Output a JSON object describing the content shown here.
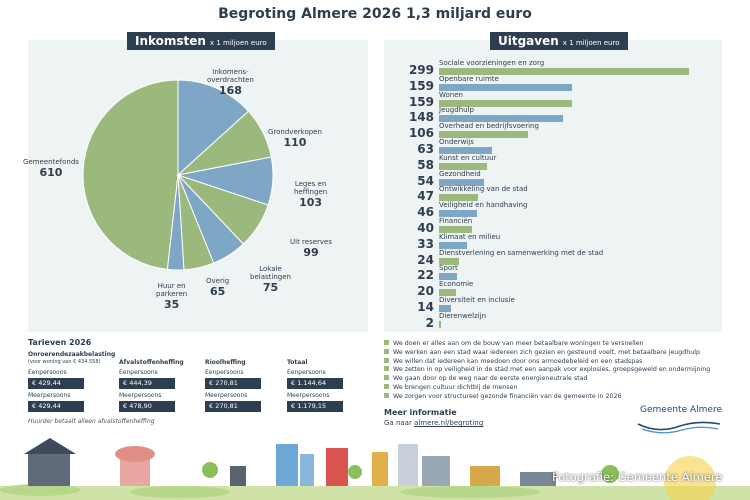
{
  "title": "Begroting Almere 2026 1,3 miljard euro",
  "income": {
    "heading": "Inkomsten",
    "unit": "x 1 miljoen euro",
    "slices": [
      {
        "label": "Gemeentefonds",
        "value": "610",
        "color": "#9bb97c"
      },
      {
        "label": "Inkomens-\noverdrachten",
        "value": "168",
        "color": "#7ea6c5"
      },
      {
        "label": "Grondverkopen",
        "value": "110",
        "color": "#9bb97c"
      },
      {
        "label": "Leges en\nheffingen",
        "value": "103",
        "color": "#7ea6c5"
      },
      {
        "label": "Uit reserves",
        "value": "99",
        "color": "#9bb97c"
      },
      {
        "label": "Lokale\nbelastingen",
        "value": "75",
        "color": "#7ea6c5"
      },
      {
        "label": "Overig",
        "value": "65",
        "color": "#9bb97c"
      },
      {
        "label": "Huur en\nparkeren",
        "value": "35",
        "color": "#7ea6c5"
      }
    ]
  },
  "expenses": {
    "heading": "Uitgaven",
    "unit": "x 1 miljoen euro",
    "items": [
      {
        "label": "Sociale voorzieningen en zorg",
        "value": "299",
        "color": "#9bb97c"
      },
      {
        "label": "Openbare ruimte",
        "value": "159",
        "color": "#7ea6c5"
      },
      {
        "label": "Wonen",
        "value": "159",
        "color": "#9bb97c"
      },
      {
        "label": "Jeugdhulp",
        "value": "148",
        "color": "#7ea6c5"
      },
      {
        "label": "Overhead en bedrijfsvoering",
        "value": "106",
        "color": "#9bb97c"
      },
      {
        "label": "Onderwijs",
        "value": "63",
        "color": "#7ea6c5"
      },
      {
        "label": "Kunst en cultuur",
        "value": "58",
        "color": "#9bb97c"
      },
      {
        "label": "Gezondheid",
        "value": "54",
        "color": "#7ea6c5"
      },
      {
        "label": "Ontwikkeling van de stad",
        "value": "47",
        "color": "#9bb97c"
      },
      {
        "label": "Veiligheid en handhaving",
        "value": "46",
        "color": "#7ea6c5"
      },
      {
        "label": "Financiën",
        "value": "40",
        "color": "#9bb97c"
      },
      {
        "label": "Klimaat en milieu",
        "value": "33",
        "color": "#7ea6c5"
      },
      {
        "label": "Dienstverlening en samenwerking met de stad",
        "value": "24",
        "color": "#9bb97c"
      },
      {
        "label": "Sport",
        "value": "22",
        "color": "#7ea6c5"
      },
      {
        "label": "Economie",
        "value": "20",
        "color": "#9bb97c"
      },
      {
        "label": "Diversiteit en inclusie",
        "value": "14",
        "color": "#7ea6c5"
      },
      {
        "label": "Dierenwelzijn",
        "value": "2",
        "color": "#9bb97c"
      }
    ]
  },
  "tarieven": {
    "heading": "Tarieven 2026",
    "ozb_label": "Onroerendezaakbelasting",
    "ozb_note": "(voor woning van € 434.558)",
    "afval_label": "Afvalstoffenheffing",
    "riool_label": "Rioolheffing",
    "totaal_label": "Totaal",
    "eenpersoons": "Eenpersoons",
    "meerpersoons": "Meerpersoons",
    "ozb_een": "€ 429,44",
    "ozb_meer": "€ 429,44",
    "afval_een": "€ 444,39",
    "afval_meer": "€ 478,90",
    "riool_een": "€ 270,81",
    "riool_meer": "€ 270,81",
    "totaal_een": "€ 1.144,64",
    "totaal_meer": "€ 1.179,15",
    "footnote": "Huurder betaalt alleen afvalstoffenheffing"
  },
  "goals": [
    "We doen er alles aan om de bouw van meer betaalbare woningen te versnellen",
    "We werken aan een stad waar iedereen zich gezien en gesteund voelt, met betaalbare jeugdhulp",
    "We willen dat iedereen kan meedoen door ons armoedebeleid en een stadspas",
    "We zetten in op veiligheid in de stad met een aanpak voor explosies, groepsgeweld en ondermijning",
    "We gaan door op de weg naar de eerste energieneutrale stad",
    "We brengen cultuur dichtbij de mensen",
    "We zorgen voor structureel gezonde financiën van de gemeente in 2026"
  ],
  "info": {
    "heading": "Meer informatie",
    "text": "Ga naar ",
    "link": "almere.nl/begroting"
  },
  "logo": "Gemeente Almere",
  "credit": "Fotografie: Gemeente Almere"
}
